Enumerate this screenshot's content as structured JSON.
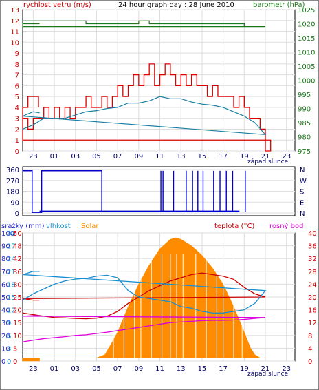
{
  "colors": {
    "wind": "#dd0000",
    "wind_gust": "#1a7fa0",
    "pressure": "#1a7a1a",
    "direction": "#0000cc",
    "solar": "#ff8c00",
    "humidity": "#1a8fd0",
    "temp": "#cc0000",
    "dew": "#dd00dd",
    "rain": "#2222cc",
    "axis_text_left": "#cc0000",
    "axis_text_right": "#1a7a1a",
    "axis_text_bottom": "#000066"
  },
  "chart_data": [
    {
      "type": "line",
      "title": "24 hour graph day : 28 June 2010",
      "left_axis_label": "rychlost vetru (m/s)",
      "right_axis_label": "barometr (hPa)",
      "x_ticks": [
        "23",
        "01",
        "03",
        "05",
        "07",
        "09",
        "11",
        "13",
        "15",
        "17",
        "19",
        "21",
        "23"
      ],
      "sunset_label": "západ slunce",
      "left_ticks": [
        "0",
        "1",
        "2",
        "3",
        "4",
        "5",
        "6",
        "7",
        "8",
        "9",
        "10",
        "11",
        "12",
        "13"
      ],
      "left_ylim": [
        0,
        13
      ],
      "right_ticks": [
        "975",
        "980",
        "985",
        "990",
        "995",
        "1000",
        "1005",
        "1010",
        "1015",
        "1020",
        "1025"
      ],
      "right_ylim": [
        975,
        1025
      ],
      "series": [
        {
          "key": "pressure",
          "points": [
            [
              22,
              1021
            ],
            [
              0,
              1021
            ],
            [
              1,
              1021
            ],
            [
              2,
              1021
            ],
            [
              3,
              1021
            ],
            [
              4,
              1020
            ],
            [
              5,
              1020
            ],
            [
              6,
              1020
            ],
            [
              7,
              1020
            ],
            [
              8,
              1020
            ],
            [
              9,
              1021
            ],
            [
              10,
              1020
            ],
            [
              11,
              1020
            ],
            [
              12,
              1020
            ],
            [
              13,
              1020
            ],
            [
              14,
              1020
            ],
            [
              15,
              1020
            ],
            [
              16,
              1020
            ],
            [
              17,
              1020
            ],
            [
              18,
              1020
            ],
            [
              19,
              1019
            ],
            [
              20,
              1019
            ],
            [
              21,
              1019
            ],
            [
              22,
              1020
            ],
            [
              23,
              1020
            ],
            [
              23.6,
              1020
            ]
          ]
        },
        {
          "key": "wind",
          "points": [
            [
              22,
              3
            ],
            [
              22.5,
              2
            ],
            [
              23,
              3
            ],
            [
              23.5,
              3
            ],
            [
              0,
              4
            ],
            [
              0.5,
              3
            ],
            [
              1,
              4
            ],
            [
              1.5,
              3
            ],
            [
              2,
              4
            ],
            [
              2.5,
              3
            ],
            [
              3,
              4
            ],
            [
              3.5,
              4
            ],
            [
              4,
              5
            ],
            [
              4.5,
              4
            ],
            [
              5,
              4
            ],
            [
              5.5,
              5
            ],
            [
              6,
              4
            ],
            [
              6.5,
              5
            ],
            [
              7,
              6
            ],
            [
              7.5,
              5
            ],
            [
              8,
              6
            ],
            [
              8.5,
              7
            ],
            [
              9,
              6
            ],
            [
              9.5,
              7
            ],
            [
              10,
              8
            ],
            [
              10.5,
              6
            ],
            [
              11,
              7
            ],
            [
              11.5,
              8
            ],
            [
              12,
              7
            ],
            [
              12.5,
              6
            ],
            [
              13,
              7
            ],
            [
              13.5,
              6
            ],
            [
              14,
              7
            ],
            [
              14.5,
              6
            ],
            [
              15,
              6
            ],
            [
              15.5,
              5
            ],
            [
              16,
              6
            ],
            [
              16.5,
              5
            ],
            [
              17,
              5
            ],
            [
              17.5,
              5
            ],
            [
              18,
              4
            ],
            [
              18.5,
              5
            ],
            [
              19,
              4
            ],
            [
              19.5,
              3
            ],
            [
              20,
              3
            ],
            [
              20.5,
              2
            ],
            [
              21,
              0
            ],
            [
              21.5,
              1
            ],
            [
              22,
              4
            ],
            [
              22.5,
              5
            ],
            [
              23,
              5
            ],
            [
              23.5,
              4
            ]
          ]
        },
        {
          "key": "wind_gust",
          "points": [
            [
              22,
              2
            ],
            [
              23,
              2.4
            ],
            [
              0,
              3
            ],
            [
              1,
              3
            ],
            [
              2,
              3
            ],
            [
              3,
              3.3
            ],
            [
              4,
              3.6
            ],
            [
              5,
              3.7
            ],
            [
              6,
              3.9
            ],
            [
              7,
              4
            ],
            [
              8,
              4.4
            ],
            [
              9,
              4.4
            ],
            [
              10,
              4.6
            ],
            [
              11,
              5
            ],
            [
              12,
              4.8
            ],
            [
              13,
              4.8
            ],
            [
              14,
              4.5
            ],
            [
              15,
              4.3
            ],
            [
              16,
              4.2
            ],
            [
              17,
              4
            ],
            [
              18,
              3.6
            ],
            [
              19,
              3.2
            ],
            [
              20,
              2.6
            ],
            [
              21,
              1.5
            ],
            [
              22,
              3.2
            ],
            [
              23,
              3.6
            ],
            [
              23.6,
              3.5
            ]
          ]
        }
      ]
    },
    {
      "type": "line",
      "title": "",
      "left_ticks": [
        "0",
        "90",
        "180",
        "270",
        "360"
      ],
      "left_ylim": [
        0,
        360
      ],
      "right_ticks": [
        "N",
        "E",
        "S",
        "W",
        "N"
      ],
      "series": [
        {
          "key": "direction",
          "points": [
            [
              22,
              350
            ],
            [
              22.9,
              350
            ],
            [
              22.9,
              5
            ],
            [
              23.8,
              5
            ],
            [
              23.8,
              350
            ],
            [
              5.5,
              350
            ],
            [
              5.5,
              10
            ],
            [
              18.5,
              10
            ],
            [
              18.5,
              15
            ],
            [
              23.6,
              15
            ]
          ],
          "spikes_hour": [
            11.1,
            11.3,
            12.3,
            13.5,
            14.1,
            14.6,
            15.1,
            16.1,
            16.7,
            17.3,
            17.9,
            19.1
          ],
          "spikes_value": 350
        }
      ]
    },
    {
      "type": "line",
      "legend": [
        "srážky (mm)",
        "vlhkost",
        "Solar",
        "teplota (°C)",
        "rosný bod"
      ],
      "x_ticks": [
        "23",
        "01",
        "03",
        "05",
        "07",
        "09",
        "11",
        "13",
        "15",
        "17",
        "19",
        "21",
        "23"
      ],
      "sunset_label": "západ slunce",
      "rain_ticks": [
        "0",
        "10",
        "20",
        "30",
        "40",
        "50",
        "60",
        "70",
        "80",
        "90",
        "100"
      ],
      "humidity_ticks": [
        "0",
        "3",
        "6",
        "9",
        "12",
        "15",
        "18",
        "21",
        "24",
        "27",
        "30"
      ],
      "solar_ticks": [
        "0",
        "5",
        "10",
        "15",
        "20",
        "25",
        "30",
        "36",
        "42",
        "48",
        "50"
      ],
      "temp_ticks": [
        "0",
        "4",
        "8",
        "12",
        "16",
        "20",
        "24",
        "28",
        "32",
        "36",
        "40"
      ],
      "temp_ylim": [
        0,
        40
      ],
      "series": [
        {
          "key": "temp",
          "points": [
            [
              22,
              15
            ],
            [
              23,
              14.5
            ],
            [
              0,
              14
            ],
            [
              1,
              13.6
            ],
            [
              2,
              13.5
            ],
            [
              3,
              13.3
            ],
            [
              4,
              13.2
            ],
            [
              5,
              13.4
            ],
            [
              6,
              14
            ],
            [
              7,
              15.5
            ],
            [
              8,
              18
            ],
            [
              9,
              20
            ],
            [
              10,
              22
            ],
            [
              11,
              23.5
            ],
            [
              12,
              25
            ],
            [
              13,
              26
            ],
            [
              14,
              27
            ],
            [
              15,
              27.5
            ],
            [
              16,
              27
            ],
            [
              17,
              26.5
            ],
            [
              18,
              25.5
            ],
            [
              19,
              23
            ],
            [
              20,
              21
            ],
            [
              21,
              20
            ],
            [
              22,
              19.5
            ],
            [
              23,
              19
            ],
            [
              23.6,
              19
            ]
          ]
        },
        {
          "key": "humidity",
          "points": [
            [
              22,
              19
            ],
            [
              23,
              21
            ],
            [
              0,
              22.5
            ],
            [
              1,
              24
            ],
            [
              2,
              25
            ],
            [
              3,
              25.6
            ],
            [
              4,
              25.8
            ],
            [
              5,
              26.5
            ],
            [
              6,
              26.8
            ],
            [
              7,
              26
            ],
            [
              8,
              22
            ],
            [
              9,
              20
            ],
            [
              10,
              19.5
            ],
            [
              11,
              19
            ],
            [
              12,
              18.5
            ],
            [
              13,
              17
            ],
            [
              14,
              16.5
            ],
            [
              15,
              15.5
            ],
            [
              16,
              15
            ],
            [
              17,
              15
            ],
            [
              18,
              15.5
            ],
            [
              19,
              16
            ],
            [
              20,
              18
            ],
            [
              21,
              22
            ],
            [
              22,
              27
            ],
            [
              23,
              28
            ],
            [
              23.6,
              28
            ]
          ]
        },
        {
          "key": "dew",
          "points": [
            [
              22,
              6
            ],
            [
              23,
              6.5
            ],
            [
              0,
              7
            ],
            [
              1,
              7.3
            ],
            [
              2,
              7.6
            ],
            [
              3,
              8
            ],
            [
              4,
              8.2
            ],
            [
              5,
              8.6
            ],
            [
              6,
              9
            ],
            [
              7,
              9.5
            ],
            [
              8,
              10
            ],
            [
              9,
              10.5
            ],
            [
              10,
              11
            ],
            [
              11,
              11.5
            ],
            [
              12,
              12
            ],
            [
              13,
              12.2
            ],
            [
              14,
              12.4
            ],
            [
              15,
              12.6
            ],
            [
              16,
              12.7
            ],
            [
              17,
              12.7
            ],
            [
              18,
              12.8
            ],
            [
              19,
              13
            ],
            [
              20,
              13.3
            ],
            [
              21,
              13.6
            ],
            [
              22,
              14
            ],
            [
              23,
              14.2
            ],
            [
              23.6,
              14.2
            ]
          ]
        },
        {
          "key": "solar",
          "points": [
            [
              22,
              1
            ],
            [
              23,
              1
            ],
            [
              0,
              1
            ],
            [
              1,
              1
            ],
            [
              2,
              1
            ],
            [
              3,
              1
            ],
            [
              4,
              1
            ],
            [
              5,
              1
            ],
            [
              5.8,
              2
            ],
            [
              6.5,
              6
            ],
            [
              7,
              9
            ],
            [
              8,
              17
            ],
            [
              9,
              24
            ],
            [
              10,
              30
            ],
            [
              11,
              35
            ],
            [
              12,
              38
            ],
            [
              12.5,
              38.5
            ],
            [
              13,
              38
            ],
            [
              14,
              36
            ],
            [
              15,
              33
            ],
            [
              16,
              29
            ],
            [
              17,
              24
            ],
            [
              18,
              17
            ],
            [
              18.5,
              13
            ],
            [
              19,
              9
            ],
            [
              19.6,
              4
            ],
            [
              20,
              2
            ],
            [
              20.5,
              1
            ],
            [
              21,
              1
            ],
            [
              22,
              1
            ],
            [
              23,
              1
            ],
            [
              23.6,
              1
            ]
          ],
          "ylim": [
            0,
            40
          ]
        }
      ]
    }
  ]
}
